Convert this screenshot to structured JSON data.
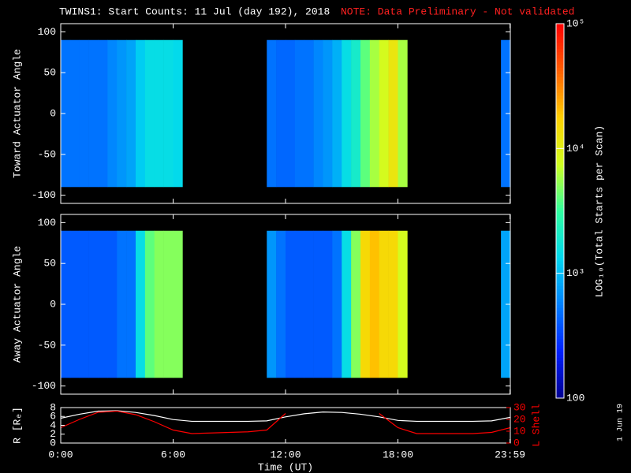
{
  "header": {
    "title": "TWINS1: Start Counts: 11 Jul (day 192), 2018",
    "note": "NOTE: Data Preliminary - Not validated",
    "date_stamp": "1 Jun 19"
  },
  "colorbar": {
    "label": "LOG₁₀(Total Starts per Scan)",
    "lim": [
      100,
      100000
    ],
    "log": true,
    "ticks": [
      {
        "value": 100000,
        "label": "10⁵"
      },
      {
        "value": 10000,
        "label": "10⁴"
      },
      {
        "value": 1000,
        "label": "10³"
      },
      100
    ],
    "colormap": [
      "#000090",
      "#0020ff",
      "#0080ff",
      "#00d8f0",
      "#30ffa0",
      "#d0ff20",
      "#ffd000",
      "#ff6000",
      "#ff0000"
    ]
  },
  "chart_data": [
    {
      "type": "heatmap",
      "ylabel": "Toward Actuator Angle",
      "xlim": [
        0,
        24
      ],
      "ylim": [
        -110,
        110
      ],
      "yticks": [
        -100,
        -50,
        0,
        50,
        100
      ],
      "x_edges": [
        0,
        0.5,
        1,
        1.5,
        2,
        2.5,
        3,
        3.5,
        4,
        4.5,
        5,
        5.5,
        6,
        6.5,
        7,
        7.5,
        8,
        8.5,
        9,
        9.5,
        10,
        10.5,
        11,
        11.5,
        12,
        12.5,
        13,
        13.5,
        14,
        14.5,
        15,
        15.5,
        16,
        16.5,
        17,
        17.5,
        18,
        18.5,
        19,
        19.5,
        20,
        20.5,
        21,
        21.5,
        22,
        22.5,
        23,
        23.5,
        24
      ],
      "y_edges": [
        -90,
        90
      ],
      "values": [
        500,
        500,
        500,
        500,
        500,
        600,
        700,
        800,
        1200,
        1500,
        1500,
        1500,
        1400,
        null,
        null,
        null,
        null,
        null,
        null,
        null,
        null,
        null,
        500,
        450,
        450,
        500,
        500,
        600,
        700,
        900,
        1500,
        2000,
        4000,
        6000,
        8000,
        12000,
        6000,
        null,
        null,
        null,
        null,
        null,
        null,
        null,
        null,
        null,
        null,
        500
      ]
    },
    {
      "type": "heatmap",
      "ylabel": "Away Actuator Angle",
      "xlim": [
        0,
        24
      ],
      "ylim": [
        -110,
        110
      ],
      "yticks": [
        -100,
        -50,
        0,
        50,
        100
      ],
      "x_edges": [
        0,
        0.5,
        1,
        1.5,
        2,
        2.5,
        3,
        3.5,
        4,
        4.5,
        5,
        5.5,
        6,
        6.5,
        7,
        7.5,
        8,
        8.5,
        9,
        9.5,
        10,
        10.5,
        11,
        11.5,
        12,
        12.5,
        13,
        13.5,
        14,
        14.5,
        15,
        15.5,
        16,
        16.5,
        17,
        17.5,
        18,
        18.5,
        19,
        19.5,
        20,
        20.5,
        21,
        21.5,
        22,
        22.5,
        23,
        23.5,
        24
      ],
      "y_edges": [
        -90,
        90
      ],
      "values": [
        400,
        400,
        400,
        400,
        400,
        400,
        500,
        500,
        1500,
        4000,
        5000,
        5000,
        5000,
        null,
        null,
        null,
        null,
        null,
        null,
        null,
        null,
        null,
        700,
        500,
        400,
        400,
        400,
        400,
        400,
        500,
        1500,
        5000,
        15000,
        20000,
        15000,
        15000,
        8000,
        null,
        null,
        null,
        null,
        null,
        null,
        null,
        null,
        null,
        null,
        800
      ]
    },
    {
      "type": "line",
      "ylabel": "R [Rₑ]",
      "y2label": "L Shell",
      "xlabel": "Time (UT)",
      "xlim": [
        0,
        24
      ],
      "xticks": [
        {
          "value": 0,
          "label": "0:00"
        },
        {
          "value": 6,
          "label": "6:00"
        },
        {
          "value": 12,
          "label": "12:00"
        },
        {
          "value": 18,
          "label": "18:00"
        },
        {
          "value": 23.983,
          "label": "23:59"
        }
      ],
      "ylim": [
        0,
        8
      ],
      "yticks": [
        0,
        2,
        4,
        6,
        8
      ],
      "y2lim": [
        0,
        30
      ],
      "y2ticks": [
        0,
        10,
        20,
        30
      ],
      "x": [
        0,
        1,
        2,
        3,
        4,
        5,
        6,
        7,
        8,
        9,
        10,
        11,
        12,
        13,
        14,
        15,
        16,
        17,
        18,
        19,
        20,
        21,
        22,
        23,
        24
      ],
      "series": [
        {
          "name": "R",
          "color": "#ffffff",
          "values": [
            5.6,
            6.5,
            7.2,
            7.3,
            6.9,
            6.2,
            5.3,
            4.9,
            4.9,
            4.9,
            4.9,
            5.0,
            5.9,
            6.6,
            7.0,
            6.9,
            6.5,
            5.9,
            5.1,
            4.9,
            4.9,
            4.9,
            4.9,
            5.0,
            5.8
          ]
        },
        {
          "name": "L Shell",
          "color": "#ff0000",
          "axis": "y2",
          "values": [
            13,
            20,
            26,
            27,
            24,
            18,
            11,
            8,
            8.5,
            9,
            9.5,
            11,
            25,
            null,
            null,
            null,
            null,
            25,
            13,
            8,
            8,
            8,
            8,
            9,
            13
          ]
        }
      ]
    }
  ]
}
